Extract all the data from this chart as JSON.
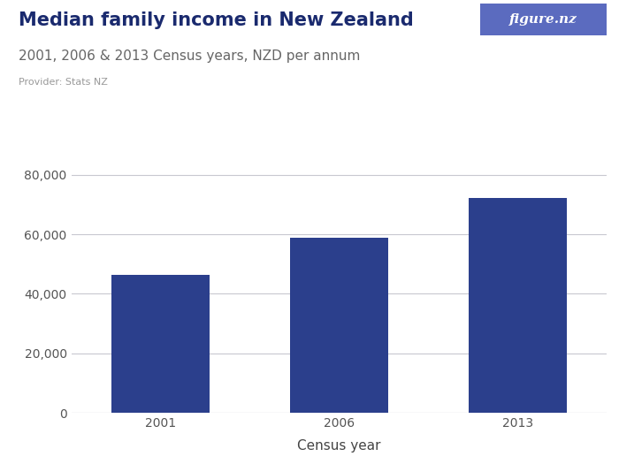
{
  "title": "Median family income in New Zealand",
  "subtitle": "2001, 2006 & 2013 Census years, NZD per annum",
  "provider": "Provider: Stats NZ",
  "xlabel": "Census year",
  "categories": [
    "2001",
    "2006",
    "2013"
  ],
  "values": [
    46500,
    58800,
    72300
  ],
  "bar_color": "#2B3F8C",
  "background_color": "#ffffff",
  "ylim": [
    0,
    88000
  ],
  "yticks": [
    0,
    20000,
    40000,
    60000,
    80000
  ],
  "ytick_labels": [
    "0",
    "20,000",
    "40,000",
    "60,000",
    "80,000"
  ],
  "grid_color": "#c8c8d0",
  "title_color": "#1a2a6e",
  "subtitle_color": "#666666",
  "provider_color": "#999999",
  "logo_bg_color": "#5b6bbf",
  "logo_text": "figure.nz",
  "logo_text_color": "#ffffff",
  "title_fontsize": 15,
  "subtitle_fontsize": 11,
  "provider_fontsize": 8,
  "axis_label_fontsize": 11,
  "tick_fontsize": 10
}
